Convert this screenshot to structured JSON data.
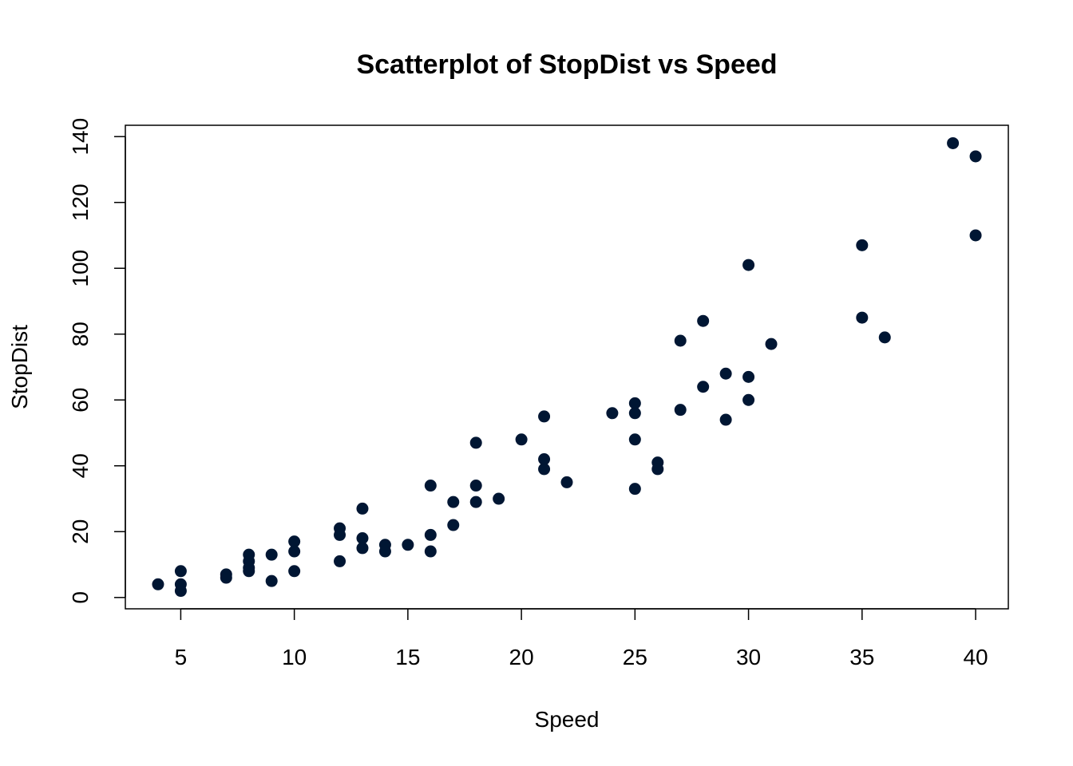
{
  "chart_data": {
    "type": "scatter",
    "title": "Scatterplot of StopDist vs Speed",
    "xlabel": "Speed",
    "ylabel": "StopDist",
    "xlim": [
      2.56,
      41.44
    ],
    "ylim": [
      -3.44,
      143.44
    ],
    "xticks": [
      5,
      10,
      15,
      20,
      25,
      30,
      35,
      40
    ],
    "yticks": [
      0,
      20,
      40,
      60,
      80,
      100,
      120,
      140
    ],
    "grid": false,
    "point_color": "#001633",
    "points": [
      [
        4,
        4
      ],
      [
        5,
        8
      ],
      [
        5,
        4
      ],
      [
        5,
        2
      ],
      [
        7,
        7
      ],
      [
        7,
        6
      ],
      [
        8,
        13
      ],
      [
        8,
        11
      ],
      [
        8,
        9
      ],
      [
        8,
        8
      ],
      [
        9,
        13
      ],
      [
        9,
        5
      ],
      [
        10,
        17
      ],
      [
        10,
        14
      ],
      [
        10,
        8
      ],
      [
        12,
        21
      ],
      [
        12,
        19
      ],
      [
        12,
        11
      ],
      [
        13,
        27
      ],
      [
        13,
        18
      ],
      [
        13,
        15
      ],
      [
        14,
        16
      ],
      [
        14,
        14
      ],
      [
        15,
        16
      ],
      [
        16,
        34
      ],
      [
        16,
        19
      ],
      [
        16,
        14
      ],
      [
        17,
        29
      ],
      [
        17,
        22
      ],
      [
        18,
        47
      ],
      [
        18,
        34
      ],
      [
        18,
        29
      ],
      [
        19,
        30
      ],
      [
        20,
        48
      ],
      [
        21,
        55
      ],
      [
        21,
        42
      ],
      [
        21,
        39
      ],
      [
        22,
        35
      ],
      [
        24,
        56
      ],
      [
        25,
        59
      ],
      [
        25,
        56
      ],
      [
        25,
        48
      ],
      [
        25,
        33
      ],
      [
        26,
        41
      ],
      [
        26,
        39
      ],
      [
        27,
        78
      ],
      [
        27,
        57
      ],
      [
        28,
        84
      ],
      [
        28,
        64
      ],
      [
        29,
        68
      ],
      [
        29,
        54
      ],
      [
        30,
        101
      ],
      [
        30,
        67
      ],
      [
        30,
        60
      ],
      [
        31,
        77
      ],
      [
        35,
        107
      ],
      [
        35,
        85
      ],
      [
        36,
        79
      ],
      [
        39,
        138
      ],
      [
        40,
        134
      ],
      [
        40,
        110
      ]
    ]
  }
}
